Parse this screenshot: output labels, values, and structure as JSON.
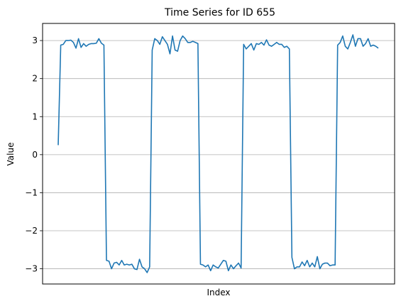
{
  "chart_data": {
    "type": "line",
    "title": "Time Series for ID 655",
    "xlabel": "Index",
    "ylabel": "Value",
    "ylim": [
      -3.4,
      3.45
    ],
    "xticks_visible": false,
    "yticks": [
      -3,
      -2,
      -1,
      0,
      1,
      2,
      3
    ],
    "ytick_labels": [
      "−3",
      "−2",
      "−1",
      "0",
      "1",
      "2",
      "3"
    ],
    "grid": "y",
    "series": [
      {
        "color": "#1f77b4",
        "values": [
          0.25,
          2.88,
          2.9,
          3.0,
          3.0,
          3.01,
          2.95,
          2.8,
          3.05,
          2.82,
          2.92,
          2.85,
          2.9,
          2.92,
          2.92,
          2.93,
          3.05,
          2.93,
          2.88,
          -2.78,
          -2.8,
          -3.0,
          -2.85,
          -2.83,
          -2.9,
          -2.78,
          -2.9,
          -2.88,
          -2.9,
          -2.88,
          -3.0,
          -3.02,
          -2.75,
          -2.95,
          -3.0,
          -3.1,
          -2.95,
          2.75,
          3.05,
          3.0,
          2.9,
          3.1,
          3.0,
          2.9,
          2.65,
          3.12,
          2.75,
          2.72,
          3.0,
          3.12,
          3.05,
          2.95,
          2.95,
          2.98,
          2.95,
          2.92,
          -2.88,
          -2.9,
          -2.95,
          -2.9,
          -3.05,
          -2.9,
          -2.95,
          -2.98,
          -2.88,
          -2.78,
          -2.8,
          -3.05,
          -2.9,
          -3.0,
          -2.92,
          -2.85,
          -2.98,
          2.9,
          2.78,
          2.85,
          2.92,
          2.75,
          2.92,
          2.9,
          2.95,
          2.88,
          3.02,
          2.88,
          2.85,
          2.9,
          2.95,
          2.9,
          2.9,
          2.82,
          2.85,
          2.78,
          -2.7,
          -3.0,
          -2.95,
          -2.95,
          -2.82,
          -2.92,
          -2.78,
          -2.95,
          -2.85,
          -2.95,
          -2.68,
          -3.0,
          -2.88,
          -2.85,
          -2.85,
          -2.92,
          -2.9,
          -2.9,
          2.88,
          2.95,
          3.12,
          2.85,
          2.78,
          2.95,
          3.15,
          2.85,
          3.05,
          3.05,
          2.85,
          2.92,
          3.05,
          2.85,
          2.88,
          2.85,
          2.8
        ]
      }
    ]
  }
}
